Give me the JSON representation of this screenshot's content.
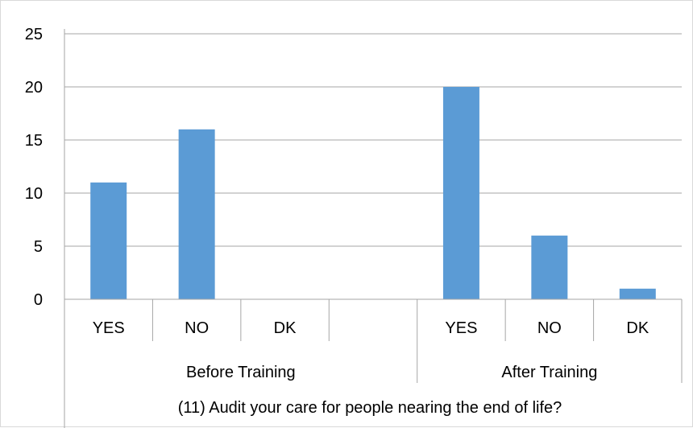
{
  "chart_data": {
    "type": "bar",
    "categories": [
      "YES",
      "NO",
      "DK",
      "",
      "YES",
      "NO",
      "DK"
    ],
    "groups": [
      {
        "label": "Before Training",
        "span": 4
      },
      {
        "label": "After Training",
        "span": 3
      }
    ],
    "values": [
      11,
      16,
      0,
      null,
      20,
      6,
      1
    ],
    "title": "",
    "xlabel": "(11) Audit your care for people nearing the end of life?",
    "ylabel": "",
    "ylim": [
      0,
      25
    ],
    "yticks": [
      0,
      5,
      10,
      15,
      20,
      25
    ],
    "grid": true,
    "legend": "none",
    "colors": {
      "bar": "#5b9bd5",
      "grid": "#a6a6a6",
      "axis": "#a6a6a6"
    }
  }
}
